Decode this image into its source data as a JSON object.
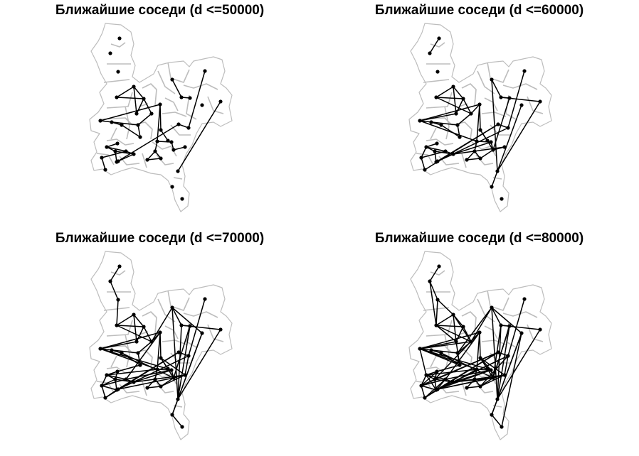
{
  "colors": {
    "background": "#ffffff",
    "boundary": "#bdbdbd",
    "link": "#000000",
    "node": "#000000"
  },
  "panels": [
    {
      "title": "Ближайшие соседи (d <=50000)",
      "edges": [
        [
          3,
          4
        ],
        [
          3,
          5
        ],
        [
          4,
          5
        ],
        [
          5,
          6
        ],
        [
          4,
          6
        ],
        [
          5,
          7
        ],
        [
          7,
          8
        ],
        [
          8,
          9
        ],
        [
          9,
          10
        ],
        [
          10,
          11
        ],
        [
          8,
          12
        ],
        [
          12,
          13
        ],
        [
          13,
          14
        ],
        [
          14,
          15
        ],
        [
          13,
          16
        ],
        [
          16,
          17
        ],
        [
          17,
          18
        ],
        [
          18,
          19
        ],
        [
          17,
          19
        ],
        [
          16,
          20
        ],
        [
          20,
          21
        ],
        [
          21,
          22
        ],
        [
          23,
          24
        ],
        [
          24,
          25
        ],
        [
          24,
          26
        ],
        [
          26,
          27
        ],
        [
          25,
          27
        ],
        [
          27,
          28
        ],
        [
          25,
          29
        ],
        [
          29,
          30
        ],
        [
          26,
          31
        ],
        [
          31,
          32
        ],
        [
          32,
          33
        ],
        [
          33,
          34
        ],
        [
          35,
          36
        ],
        [
          36,
          37
        ],
        [
          39,
          40
        ]
      ]
    },
    {
      "title": "Ближайшие соседи (d <=60000)",
      "edges": [
        [
          0,
          1
        ],
        [
          3,
          4
        ],
        [
          3,
          5
        ],
        [
          4,
          5
        ],
        [
          5,
          6
        ],
        [
          4,
          6
        ],
        [
          5,
          7
        ],
        [
          7,
          8
        ],
        [
          8,
          9
        ],
        [
          9,
          10
        ],
        [
          10,
          11
        ],
        [
          8,
          12
        ],
        [
          12,
          13
        ],
        [
          13,
          14
        ],
        [
          14,
          15
        ],
        [
          13,
          16
        ],
        [
          16,
          17
        ],
        [
          17,
          18
        ],
        [
          18,
          19
        ],
        [
          17,
          19
        ],
        [
          16,
          20
        ],
        [
          20,
          21
        ],
        [
          21,
          22
        ],
        [
          23,
          24
        ],
        [
          24,
          25
        ],
        [
          24,
          26
        ],
        [
          26,
          27
        ],
        [
          25,
          27
        ],
        [
          27,
          28
        ],
        [
          25,
          29
        ],
        [
          29,
          30
        ],
        [
          26,
          31
        ],
        [
          31,
          32
        ],
        [
          32,
          33
        ],
        [
          33,
          34
        ],
        [
          35,
          36
        ],
        [
          36,
          37
        ],
        [
          39,
          40
        ],
        [
          3,
          7
        ],
        [
          6,
          12
        ],
        [
          12,
          16
        ],
        [
          7,
          13
        ],
        [
          14,
          21
        ],
        [
          20,
          27
        ],
        [
          19,
          21
        ],
        [
          24,
          29
        ],
        [
          22,
          27
        ],
        [
          28,
          31
        ],
        [
          30,
          32
        ],
        [
          31,
          33
        ],
        [
          38,
          41
        ],
        [
          36,
          39
        ],
        [
          35,
          40
        ],
        [
          37,
          21
        ]
      ]
    },
    {
      "title": "Ближайшие соседи (d <=70000)",
      "edges": [
        [
          0,
          1
        ],
        [
          1,
          2
        ],
        [
          2,
          3
        ],
        [
          3,
          4
        ],
        [
          3,
          5
        ],
        [
          4,
          5
        ],
        [
          5,
          6
        ],
        [
          4,
          6
        ],
        [
          5,
          7
        ],
        [
          7,
          8
        ],
        [
          8,
          9
        ],
        [
          9,
          10
        ],
        [
          10,
          11
        ],
        [
          8,
          12
        ],
        [
          12,
          13
        ],
        [
          13,
          14
        ],
        [
          14,
          15
        ],
        [
          13,
          16
        ],
        [
          16,
          17
        ],
        [
          17,
          18
        ],
        [
          18,
          19
        ],
        [
          17,
          19
        ],
        [
          16,
          20
        ],
        [
          20,
          21
        ],
        [
          21,
          22
        ],
        [
          23,
          24
        ],
        [
          24,
          25
        ],
        [
          24,
          26
        ],
        [
          26,
          27
        ],
        [
          25,
          27
        ],
        [
          27,
          28
        ],
        [
          25,
          29
        ],
        [
          29,
          30
        ],
        [
          26,
          31
        ],
        [
          31,
          32
        ],
        [
          32,
          33
        ],
        [
          33,
          34
        ],
        [
          35,
          36
        ],
        [
          36,
          37
        ],
        [
          39,
          40
        ],
        [
          3,
          7
        ],
        [
          6,
          12
        ],
        [
          12,
          16
        ],
        [
          7,
          13
        ],
        [
          14,
          21
        ],
        [
          20,
          27
        ],
        [
          19,
          21
        ],
        [
          24,
          29
        ],
        [
          22,
          27
        ],
        [
          28,
          31
        ],
        [
          30,
          32
        ],
        [
          31,
          33
        ],
        [
          38,
          41
        ],
        [
          36,
          39
        ],
        [
          35,
          40
        ],
        [
          37,
          21
        ],
        [
          7,
          35
        ],
        [
          35,
          38
        ],
        [
          38,
          41
        ],
        [
          41,
          42
        ],
        [
          12,
          20
        ],
        [
          16,
          24
        ],
        [
          13,
          25
        ],
        [
          20,
          25
        ],
        [
          21,
          28
        ],
        [
          19,
          22
        ],
        [
          22,
          33
        ],
        [
          28,
          32
        ],
        [
          29,
          31
        ],
        [
          30,
          31
        ],
        [
          14,
          22
        ],
        [
          9,
          23
        ],
        [
          23,
          26
        ],
        [
          26,
          29
        ],
        [
          36,
          40
        ],
        [
          37,
          40
        ],
        [
          10,
          21
        ]
      ]
    },
    {
      "title": "Ближайшие соседи (d <=80000)",
      "edges": [
        [
          0,
          1
        ],
        [
          1,
          2
        ],
        [
          2,
          3
        ],
        [
          3,
          4
        ],
        [
          3,
          5
        ],
        [
          4,
          5
        ],
        [
          5,
          6
        ],
        [
          4,
          6
        ],
        [
          5,
          7
        ],
        [
          7,
          8
        ],
        [
          8,
          9
        ],
        [
          9,
          10
        ],
        [
          10,
          11
        ],
        [
          8,
          12
        ],
        [
          12,
          13
        ],
        [
          13,
          14
        ],
        [
          14,
          15
        ],
        [
          13,
          16
        ],
        [
          16,
          17
        ],
        [
          17,
          18
        ],
        [
          18,
          19
        ],
        [
          17,
          19
        ],
        [
          16,
          20
        ],
        [
          20,
          21
        ],
        [
          21,
          22
        ],
        [
          23,
          24
        ],
        [
          24,
          25
        ],
        [
          24,
          26
        ],
        [
          26,
          27
        ],
        [
          25,
          27
        ],
        [
          27,
          28
        ],
        [
          25,
          29
        ],
        [
          29,
          30
        ],
        [
          26,
          31
        ],
        [
          31,
          32
        ],
        [
          32,
          33
        ],
        [
          33,
          34
        ],
        [
          35,
          36
        ],
        [
          36,
          37
        ],
        [
          39,
          40
        ],
        [
          3,
          7
        ],
        [
          6,
          12
        ],
        [
          12,
          16
        ],
        [
          7,
          13
        ],
        [
          14,
          21
        ],
        [
          20,
          27
        ],
        [
          19,
          21
        ],
        [
          24,
          29
        ],
        [
          22,
          27
        ],
        [
          28,
          31
        ],
        [
          30,
          32
        ],
        [
          31,
          33
        ],
        [
          38,
          41
        ],
        [
          36,
          39
        ],
        [
          35,
          40
        ],
        [
          37,
          21
        ],
        [
          7,
          35
        ],
        [
          35,
          38
        ],
        [
          38,
          41
        ],
        [
          41,
          42
        ],
        [
          12,
          20
        ],
        [
          16,
          24
        ],
        [
          13,
          25
        ],
        [
          20,
          25
        ],
        [
          21,
          28
        ],
        [
          19,
          22
        ],
        [
          22,
          33
        ],
        [
          28,
          32
        ],
        [
          29,
          31
        ],
        [
          30,
          31
        ],
        [
          14,
          22
        ],
        [
          9,
          23
        ],
        [
          23,
          26
        ],
        [
          26,
          29
        ],
        [
          36,
          40
        ],
        [
          37,
          40
        ],
        [
          10,
          21
        ],
        [
          2,
          4
        ],
        [
          3,
          6
        ],
        [
          6,
          9
        ],
        [
          9,
          12
        ],
        [
          12,
          24
        ],
        [
          13,
          26
        ],
        [
          16,
          27
        ],
        [
          20,
          28
        ],
        [
          21,
          27
        ],
        [
          25,
          31
        ],
        [
          24,
          31
        ],
        [
          26,
          32
        ],
        [
          27,
          31
        ],
        [
          28,
          33
        ],
        [
          22,
          28
        ],
        [
          19,
          33
        ],
        [
          8,
          35
        ],
        [
          14,
          20
        ],
        [
          7,
          12
        ],
        [
          10,
          9
        ],
        [
          37,
          21
        ],
        [
          36,
          21
        ],
        [
          29,
          32
        ],
        [
          23,
          29
        ],
        [
          25,
          30
        ],
        [
          4,
          7
        ],
        [
          1,
          3
        ],
        [
          38,
          42
        ]
      ]
    }
  ]
}
